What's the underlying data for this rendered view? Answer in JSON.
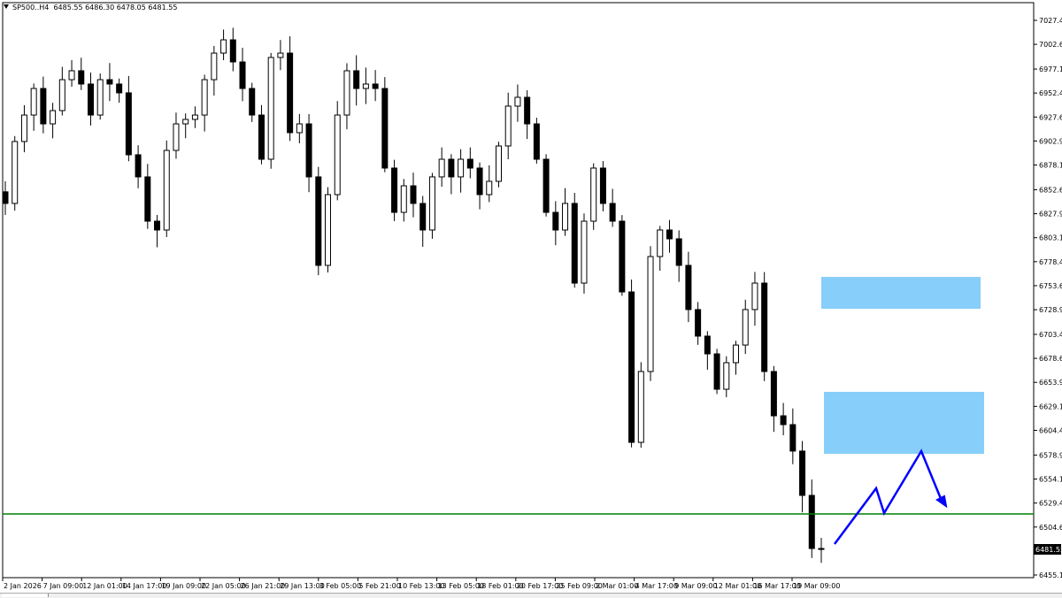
{
  "header": {
    "symbol": "SP500..H4",
    "ohlc": "6485.55 6486.30 6478.05 6481.55"
  },
  "colors": {
    "candle": "#000000",
    "background": "#ffffff",
    "support_line": "#008000",
    "zone": "#87cefa",
    "arrow": "#0000ff",
    "price_tag_bg": "#000000"
  },
  "chart_data": {
    "type": "candlestick",
    "title": "SP500..H4",
    "ylim": [
      6455.15,
      7027.4
    ],
    "y_ticks": [
      "7027.40",
      "7002.65",
      "6977.15",
      "6952.40",
      "6927.65",
      "6902.90",
      "6878.15",
      "6852.65",
      "6827.90",
      "6803.15",
      "6778.40",
      "6753.65",
      "6728.90",
      "6703.40",
      "6678.65",
      "6653.90",
      "6629.15",
      "6604.40",
      "6578.90",
      "6554.15",
      "6529.40",
      "6504.65",
      "6455.15"
    ],
    "x_ticks": [
      "2 Jan 2026",
      "7 Jan 09:00",
      "12 Jan 01:00",
      "14 Jan 17:00",
      "19 Jan 09:00",
      "22 Jan 05:00",
      "26 Jan 21:00",
      "29 Jan 13:00",
      "3 Feb 05:00",
      "5 Feb 21:00",
      "10 Feb 13:00",
      "13 Feb 05:00",
      "18 Feb 01:00",
      "20 Feb 17:00",
      "25 Feb 09:00",
      "2 Mar 01:00",
      "4 Mar 17:00",
      "9 Mar 09:00",
      "12 Mar 01:00",
      "16 Mar 17:00",
      "19 Mar 09:00"
    ],
    "current_price": "6481.55",
    "support_level": 6518.1,
    "zones": [
      {
        "from": 6729.8,
        "to": 6762.7
      },
      {
        "from": 6580.2,
        "to": 6644.1
      }
    ],
    "closes": [
      6838.5,
      6902.4,
      6929.7,
      6957.1,
      6920.6,
      6934.3,
      6966.2,
      6975.4,
      6961.7,
      6929.7,
      6966.2,
      6961.7,
      6952.6,
      6888.7,
      6865.9,
      6820.2,
      6811.1,
      6893.2,
      6920.6,
      6925.2,
      6929.7,
      6966.2,
      6993.6,
      7007.3,
      6984.5,
      6957.1,
      6929.7,
      6884.1,
      6989.1,
      6993.6,
      6911.5,
      6920.6,
      6865.9,
      6774.6,
      6847.6,
      6929.7,
      6975.4,
      6957.1,
      6961.7,
      6957.1,
      6875.0,
      6829.3,
      6856.7,
      6838.5,
      6811.1,
      6865.9,
      6884.1,
      6865.9,
      6884.1,
      6875.0,
      6847.6,
      6861.3,
      6897.8,
      6938.9,
      6948.0,
      6920.6,
      6884.1,
      6829.3,
      6811.1,
      6838.5,
      6756.3,
      6820.2,
      6875.0,
      6838.5,
      6820.2,
      6747.2,
      6592.0,
      6665.1,
      6783.7,
      6811.1,
      6802.0,
      6774.6,
      6729.0,
      6701.6,
      6683.3,
      6646.8,
      6674.2,
      6692.4,
      6729.0,
      6756.3,
      6665.1,
      6619.4,
      6610.3,
      6583.0,
      6537.3,
      6482.5,
      6481.55
    ]
  }
}
